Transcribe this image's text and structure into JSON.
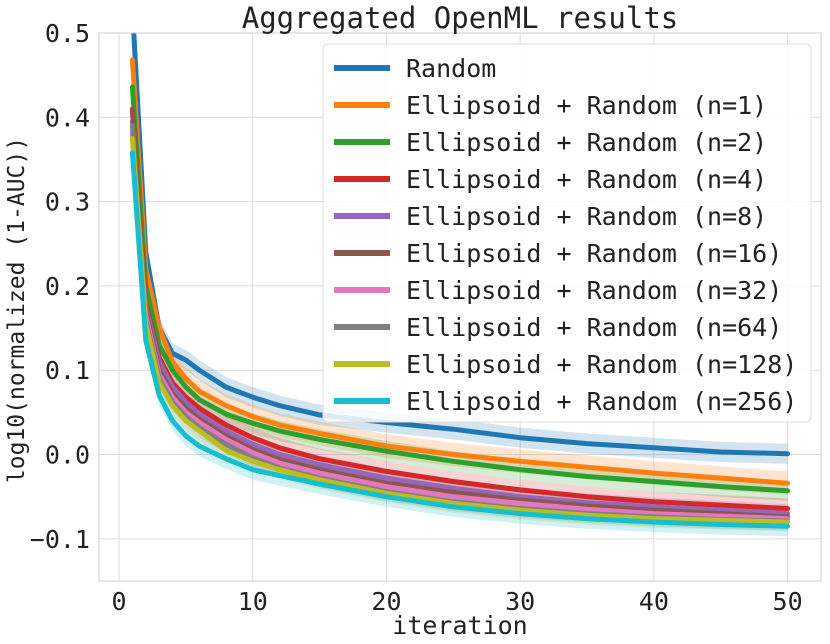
{
  "chart_data": {
    "type": "line",
    "title": "Aggregated OpenML results",
    "xlabel": "iteration",
    "ylabel": "log10(normalized (1-AUC))",
    "xlim": [
      -1.5,
      52.5
    ],
    "ylim": [
      -0.15,
      0.5
    ],
    "xticks": [
      0,
      10,
      20,
      30,
      40,
      50
    ],
    "xtick_labels": [
      "0",
      "10",
      "20",
      "30",
      "40",
      "50"
    ],
    "yticks": [
      -0.1,
      0.0,
      0.1,
      0.2,
      0.3,
      0.4,
      0.5
    ],
    "ytick_labels": [
      "−0.1",
      "0.0",
      "0.1",
      "0.2",
      "0.3",
      "0.4",
      "0.5"
    ],
    "grid": true,
    "legend_position": "top-right",
    "x": [
      1,
      2,
      3,
      4,
      5,
      6,
      8,
      10,
      12,
      15,
      20,
      25,
      30,
      35,
      40,
      45,
      50
    ],
    "series": [
      {
        "name": "Random",
        "color": "#1f77b4",
        "values": [
          0.53,
          0.24,
          0.15,
          0.12,
          0.112,
          0.1,
          0.08,
          0.068,
          0.058,
          0.047,
          0.038,
          0.03,
          0.02,
          0.013,
          0.008,
          0.003,
          0.001
        ],
        "band": 0.012
      },
      {
        "name": "Ellipsoid + Random (n=1)",
        "color": "#ff7f0e",
        "values": [
          0.468,
          0.22,
          0.15,
          0.11,
          0.09,
          0.075,
          0.058,
          0.045,
          0.035,
          0.025,
          0.01,
          0.0,
          -0.008,
          -0.015,
          -0.022,
          -0.028,
          -0.034
        ],
        "band": 0.014
      },
      {
        "name": "Ellipsoid + Random (n=2)",
        "color": "#2ca02c",
        "values": [
          0.436,
          0.2,
          0.13,
          0.1,
          0.08,
          0.065,
          0.048,
          0.037,
          0.028,
          0.018,
          0.004,
          -0.008,
          -0.018,
          -0.026,
          -0.032,
          -0.038,
          -0.043
        ],
        "band": 0.012
      },
      {
        "name": "Ellipsoid + Random (n=4)",
        "color": "#d62728",
        "values": [
          0.408,
          0.18,
          0.115,
          0.085,
          0.068,
          0.055,
          0.035,
          0.02,
          0.008,
          -0.005,
          -0.02,
          -0.032,
          -0.042,
          -0.05,
          -0.056,
          -0.06,
          -0.064
        ],
        "band": 0.012
      },
      {
        "name": "Ellipsoid + Random (n=8)",
        "color": "#9467bd",
        "values": [
          0.395,
          0.175,
          0.11,
          0.08,
          0.062,
          0.048,
          0.028,
          0.012,
          0.0,
          -0.012,
          -0.028,
          -0.04,
          -0.05,
          -0.057,
          -0.062,
          -0.066,
          -0.07
        ],
        "band": 0.011
      },
      {
        "name": "Ellipsoid + Random (n=16)",
        "color": "#8c564b",
        "values": [
          0.41,
          0.17,
          0.1,
          0.072,
          0.055,
          0.042,
          0.022,
          0.006,
          -0.006,
          -0.018,
          -0.034,
          -0.045,
          -0.054,
          -0.061,
          -0.066,
          -0.07,
          -0.074
        ],
        "band": 0.011
      },
      {
        "name": "Ellipsoid + Random (n=32)",
        "color": "#e377c2",
        "values": [
          0.38,
          0.165,
          0.095,
          0.068,
          0.05,
          0.038,
          0.018,
          0.002,
          -0.01,
          -0.022,
          -0.038,
          -0.05,
          -0.058,
          -0.065,
          -0.07,
          -0.073,
          -0.076
        ],
        "band": 0.011
      },
      {
        "name": "Ellipsoid + Random (n=64)",
        "color": "#7f7f7f",
        "values": [
          0.39,
          0.16,
          0.09,
          0.062,
          0.045,
          0.032,
          0.012,
          -0.004,
          -0.016,
          -0.028,
          -0.044,
          -0.056,
          -0.064,
          -0.07,
          -0.074,
          -0.077,
          -0.079
        ],
        "band": 0.011
      },
      {
        "name": "Ellipsoid + Random (n=128)",
        "color": "#bcbd22",
        "values": [
          0.375,
          0.155,
          0.085,
          0.058,
          0.04,
          0.028,
          0.005,
          -0.008,
          -0.018,
          -0.03,
          -0.046,
          -0.058,
          -0.066,
          -0.072,
          -0.076,
          -0.078,
          -0.08
        ],
        "band": 0.011
      },
      {
        "name": "Ellipsoid + Random (n=256)",
        "color": "#17becf",
        "values": [
          0.358,
          0.135,
          0.07,
          0.04,
          0.022,
          0.01,
          -0.005,
          -0.018,
          -0.025,
          -0.035,
          -0.05,
          -0.062,
          -0.07,
          -0.076,
          -0.08,
          -0.083,
          -0.085
        ],
        "band": 0.012
      }
    ]
  }
}
